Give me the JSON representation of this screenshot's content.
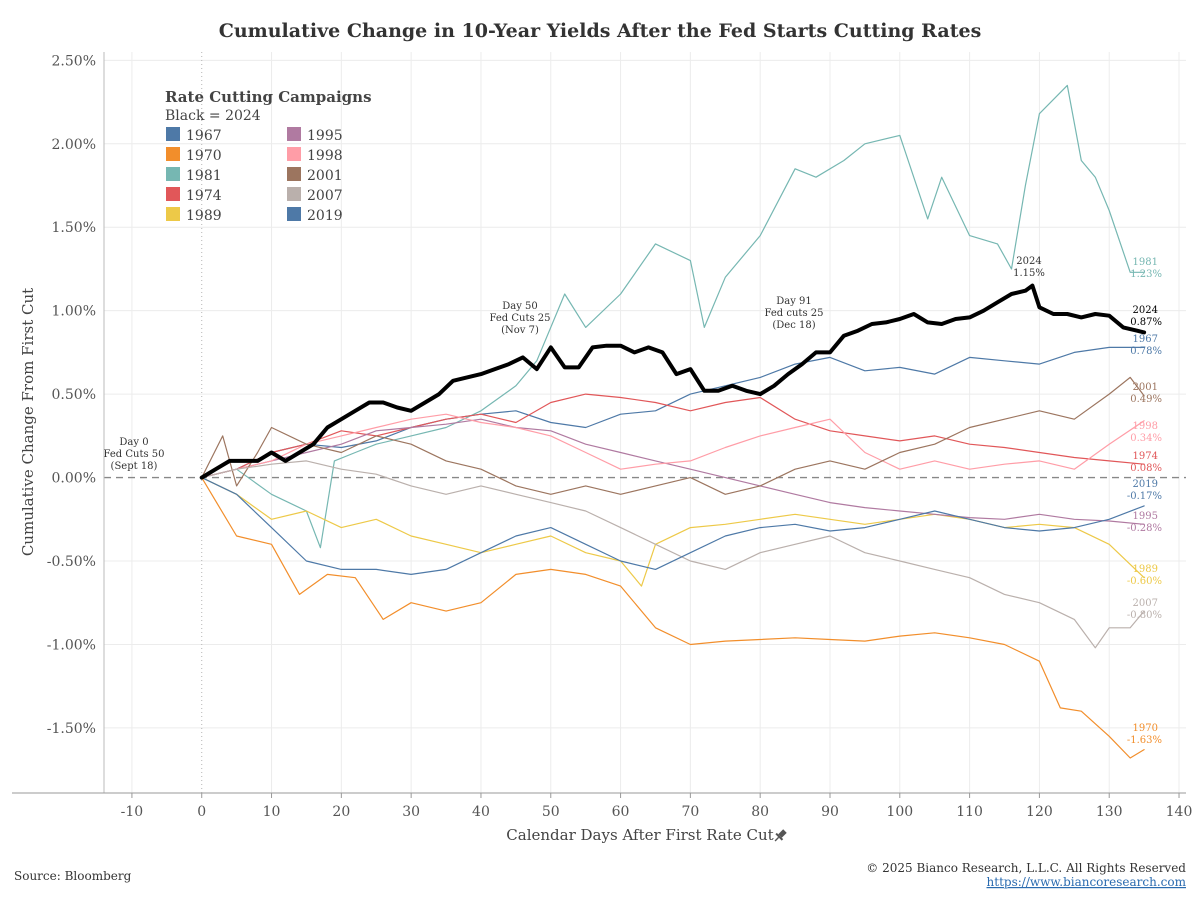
{
  "chart_data": {
    "type": "line",
    "title": "Cumulative Change in 10-Year Yields After the Fed Starts Cutting Rates",
    "xlabel": "Calendar Days After First Rate Cut",
    "ylabel": "Cumulative Change From First Cut",
    "xlim": [
      -14,
      141
    ],
    "ylim": [
      -1.89,
      2.55
    ],
    "x_ticks": [
      -10,
      0,
      10,
      20,
      30,
      40,
      50,
      60,
      70,
      80,
      90,
      100,
      110,
      120,
      130,
      140
    ],
    "x_tick_labels": [
      "-10",
      "0",
      "10",
      "20",
      "30",
      "40",
      "50",
      "60",
      "70",
      "80",
      "90",
      "100",
      "110",
      "120",
      "130",
      "140"
    ],
    "y_ticks": [
      -1.5,
      -1.0,
      -0.5,
      0.0,
      0.5,
      1.0,
      1.5,
      2.0,
      2.5
    ],
    "y_tick_labels": [
      "-1.50%",
      "-1.00%",
      "-0.50%",
      "0.00%",
      "0.50%",
      "1.00%",
      "1.50%",
      "2.00%",
      "2.50%"
    ],
    "grid": true,
    "zero_line": "dashed",
    "legend": {
      "title": "Rate Cutting Campaigns",
      "subtitle": "Black = 2024",
      "placement": "top-left",
      "column1": [
        "1967",
        "1970",
        "1981",
        "1974",
        "1989"
      ],
      "column2": [
        "1995",
        "1998",
        "2001",
        "2007",
        "2019"
      ]
    },
    "series": [
      {
        "name": "1967",
        "color": "#4e79a7",
        "x": [
          0,
          5,
          10,
          15,
          20,
          25,
          30,
          35,
          40,
          45,
          50,
          55,
          60,
          65,
          70,
          75,
          80,
          85,
          90,
          95,
          100,
          105,
          110,
          115,
          120,
          125,
          130,
          135
        ],
        "values": [
          0,
          0.05,
          0.15,
          0.2,
          0.18,
          0.22,
          0.3,
          0.35,
          0.38,
          0.4,
          0.33,
          0.3,
          0.38,
          0.4,
          0.5,
          0.55,
          0.6,
          0.68,
          0.72,
          0.64,
          0.66,
          0.62,
          0.72,
          0.7,
          0.68,
          0.75,
          0.78,
          0.78
        ],
        "end_label": "0.78%"
      },
      {
        "name": "1970",
        "color": "#f28e2b",
        "x": [
          0,
          5,
          10,
          14,
          18,
          22,
          26,
          30,
          35,
          40,
          45,
          50,
          55,
          60,
          65,
          70,
          75,
          80,
          85,
          90,
          95,
          100,
          105,
          110,
          115,
          120,
          123,
          126,
          130,
          133,
          135
        ],
        "values": [
          0,
          -0.35,
          -0.4,
          -0.7,
          -0.58,
          -0.6,
          -0.85,
          -0.75,
          -0.8,
          -0.75,
          -0.58,
          -0.55,
          -0.58,
          -0.65,
          -0.9,
          -1.0,
          -0.98,
          -0.97,
          -0.96,
          -0.97,
          -0.98,
          -0.95,
          -0.93,
          -0.96,
          -1.0,
          -1.1,
          -1.38,
          -1.4,
          -1.55,
          -1.68,
          -1.63
        ],
        "end_label": "-1.63%"
      },
      {
        "name": "1981",
        "color": "#76b7b2",
        "x": [
          0,
          5,
          10,
          15,
          17,
          19,
          22,
          25,
          30,
          35,
          40,
          45,
          48,
          52,
          55,
          60,
          65,
          70,
          72,
          75,
          80,
          85,
          88,
          92,
          95,
          100,
          104,
          106,
          110,
          114,
          116,
          118,
          120,
          124,
          126,
          128,
          130,
          133,
          135
        ],
        "values": [
          0,
          0.05,
          -0.1,
          -0.2,
          -0.42,
          0.1,
          0.15,
          0.2,
          0.25,
          0.3,
          0.4,
          0.55,
          0.7,
          1.1,
          0.9,
          1.1,
          1.4,
          1.3,
          0.9,
          1.2,
          1.45,
          1.85,
          1.8,
          1.9,
          2.0,
          2.05,
          1.55,
          1.8,
          1.45,
          1.4,
          1.25,
          1.75,
          2.18,
          2.35,
          1.9,
          1.8,
          1.6,
          1.23,
          1.23
        ],
        "end_label": "1.23%"
      },
      {
        "name": "1974",
        "color": "#e15759",
        "x": [
          0,
          5,
          10,
          15,
          20,
          25,
          30,
          35,
          40,
          45,
          50,
          55,
          60,
          65,
          70,
          75,
          80,
          85,
          90,
          95,
          100,
          105,
          110,
          115,
          120,
          125,
          130,
          135
        ],
        "values": [
          0,
          0.05,
          0.15,
          0.2,
          0.28,
          0.25,
          0.3,
          0.35,
          0.38,
          0.33,
          0.45,
          0.5,
          0.48,
          0.45,
          0.4,
          0.45,
          0.48,
          0.35,
          0.28,
          0.25,
          0.22,
          0.25,
          0.2,
          0.18,
          0.15,
          0.12,
          0.1,
          0.08
        ],
        "end_label": "0.08%"
      },
      {
        "name": "1989",
        "color": "#edc948",
        "x": [
          0,
          5,
          10,
          15,
          20,
          25,
          30,
          35,
          40,
          45,
          50,
          55,
          60,
          63,
          65,
          70,
          75,
          80,
          85,
          90,
          95,
          100,
          105,
          110,
          115,
          120,
          125,
          130,
          135
        ],
        "values": [
          0,
          -0.1,
          -0.25,
          -0.2,
          -0.3,
          -0.25,
          -0.35,
          -0.4,
          -0.45,
          -0.4,
          -0.35,
          -0.45,
          -0.5,
          -0.65,
          -0.4,
          -0.3,
          -0.28,
          -0.25,
          -0.22,
          -0.25,
          -0.28,
          -0.25,
          -0.22,
          -0.25,
          -0.3,
          -0.28,
          -0.3,
          -0.4,
          -0.6
        ],
        "end_label": "-0.60%"
      },
      {
        "name": "1995",
        "color": "#b07aa1",
        "x": [
          0,
          5,
          10,
          15,
          20,
          25,
          30,
          35,
          40,
          45,
          50,
          55,
          60,
          65,
          70,
          75,
          80,
          85,
          90,
          95,
          100,
          105,
          110,
          115,
          120,
          125,
          130,
          135
        ],
        "values": [
          0,
          0.05,
          0.1,
          0.15,
          0.2,
          0.28,
          0.3,
          0.32,
          0.35,
          0.3,
          0.28,
          0.2,
          0.15,
          0.1,
          0.05,
          0,
          -0.05,
          -0.1,
          -0.15,
          -0.18,
          -0.2,
          -0.22,
          -0.24,
          -0.25,
          -0.22,
          -0.25,
          -0.26,
          -0.28
        ],
        "end_label": "-0.28%"
      },
      {
        "name": "1998",
        "color": "#ff9da7",
        "x": [
          0,
          5,
          10,
          15,
          20,
          25,
          30,
          35,
          40,
          45,
          50,
          55,
          60,
          65,
          70,
          75,
          80,
          85,
          90,
          95,
          100,
          105,
          110,
          115,
          120,
          125,
          130,
          135
        ],
        "values": [
          0,
          0.05,
          0.1,
          0.2,
          0.25,
          0.3,
          0.35,
          0.38,
          0.33,
          0.3,
          0.25,
          0.15,
          0.05,
          0.08,
          0.1,
          0.18,
          0.25,
          0.3,
          0.35,
          0.15,
          0.05,
          0.1,
          0.05,
          0.08,
          0.1,
          0.05,
          0.2,
          0.34
        ],
        "end_label": "0.34%"
      },
      {
        "name": "2001",
        "color": "#9c755f",
        "x": [
          0,
          3,
          5,
          8,
          10,
          15,
          20,
          25,
          30,
          35,
          40,
          45,
          50,
          55,
          60,
          65,
          70,
          75,
          80,
          85,
          90,
          95,
          100,
          105,
          110,
          115,
          120,
          125,
          130,
          133,
          135
        ],
        "values": [
          0,
          0.25,
          -0.05,
          0.15,
          0.3,
          0.2,
          0.15,
          0.25,
          0.2,
          0.1,
          0.05,
          -0.05,
          -0.1,
          -0.05,
          -0.1,
          -0.05,
          0,
          -0.1,
          -0.05,
          0.05,
          0.1,
          0.05,
          0.15,
          0.2,
          0.3,
          0.35,
          0.4,
          0.35,
          0.5,
          0.6,
          0.49
        ],
        "end_label": "0.49%"
      },
      {
        "name": "2007",
        "color": "#bab0ac",
        "x": [
          0,
          5,
          10,
          15,
          20,
          25,
          30,
          35,
          40,
          45,
          50,
          55,
          60,
          65,
          70,
          75,
          80,
          85,
          90,
          95,
          100,
          105,
          110,
          115,
          120,
          125,
          128,
          130,
          133,
          135
        ],
        "values": [
          0,
          0.05,
          0.08,
          0.1,
          0.05,
          0.02,
          -0.05,
          -0.1,
          -0.05,
          -0.1,
          -0.15,
          -0.2,
          -0.3,
          -0.4,
          -0.5,
          -0.55,
          -0.45,
          -0.4,
          -0.35,
          -0.45,
          -0.5,
          -0.55,
          -0.6,
          -0.7,
          -0.75,
          -0.85,
          -1.02,
          -0.9,
          -0.9,
          -0.8
        ],
        "end_label": "-0.80%"
      },
      {
        "name": "2019",
        "color": "#4e79a7",
        "x": [
          0,
          5,
          10,
          15,
          20,
          25,
          30,
          35,
          40,
          45,
          50,
          55,
          60,
          65,
          70,
          75,
          80,
          85,
          90,
          95,
          100,
          105,
          110,
          115,
          120,
          125,
          130,
          135
        ],
        "values": [
          0,
          -0.1,
          -0.3,
          -0.5,
          -0.55,
          -0.55,
          -0.58,
          -0.55,
          -0.45,
          -0.35,
          -0.3,
          -0.4,
          -0.5,
          -0.55,
          -0.45,
          -0.35,
          -0.3,
          -0.28,
          -0.32,
          -0.3,
          -0.25,
          -0.2,
          -0.25,
          -0.3,
          -0.32,
          -0.3,
          -0.25,
          -0.17
        ],
        "end_label": "-0.17%"
      },
      {
        "name": "2024",
        "color": "#000000",
        "x": [
          0,
          2,
          4,
          6,
          8,
          10,
          12,
          14,
          16,
          18,
          20,
          22,
          24,
          26,
          28,
          30,
          32,
          34,
          36,
          38,
          40,
          42,
          44,
          46,
          48,
          50,
          52,
          54,
          56,
          58,
          60,
          62,
          64,
          66,
          68,
          70,
          72,
          74,
          76,
          78,
          80,
          82,
          84,
          86,
          88,
          90,
          92,
          94,
          96,
          98,
          100,
          102,
          104,
          106,
          108,
          110,
          112,
          114,
          116,
          118,
          119,
          120,
          122,
          124,
          126,
          128,
          130,
          132,
          134,
          135
        ],
        "values": [
          0,
          0.05,
          0.1,
          0.1,
          0.1,
          0.15,
          0.1,
          0.15,
          0.2,
          0.3,
          0.35,
          0.4,
          0.45,
          0.45,
          0.42,
          0.4,
          0.45,
          0.5,
          0.58,
          0.6,
          0.62,
          0.65,
          0.68,
          0.72,
          0.65,
          0.78,
          0.66,
          0.66,
          0.78,
          0.79,
          0.79,
          0.75,
          0.78,
          0.75,
          0.62,
          0.65,
          0.52,
          0.52,
          0.55,
          0.52,
          0.5,
          0.55,
          0.62,
          0.68,
          0.75,
          0.75,
          0.85,
          0.88,
          0.92,
          0.93,
          0.95,
          0.98,
          0.93,
          0.92,
          0.95,
          0.96,
          1.0,
          1.05,
          1.1,
          1.12,
          1.15,
          1.02,
          0.98,
          0.98,
          0.96,
          0.98,
          0.97,
          0.9,
          0.88,
          0.87
        ],
        "end_label": "0.87%"
      }
    ],
    "annotations": [
      {
        "x": 0,
        "y": 0.0,
        "lines": [
          "Day 0",
          "Fed Cuts 50",
          "(Sept 18)"
        ]
      },
      {
        "x": 50,
        "y": 0.78,
        "lines": [
          "Day 50",
          "Fed Cuts 25",
          "(Nov 7)"
        ]
      },
      {
        "x": 91,
        "y": 0.75,
        "lines": [
          "Day 91",
          "Fed cuts 25",
          "(Dec 18)"
        ]
      },
      {
        "x": 119,
        "y": 1.15,
        "lines": [
          "2024",
          "1.15%"
        ]
      }
    ],
    "source": "Source: Bloomberg",
    "copyright": "© 2025 Bianco Research, L.L.C. All Rights Reserved",
    "url": "https://www.biancoresearch.com"
  }
}
